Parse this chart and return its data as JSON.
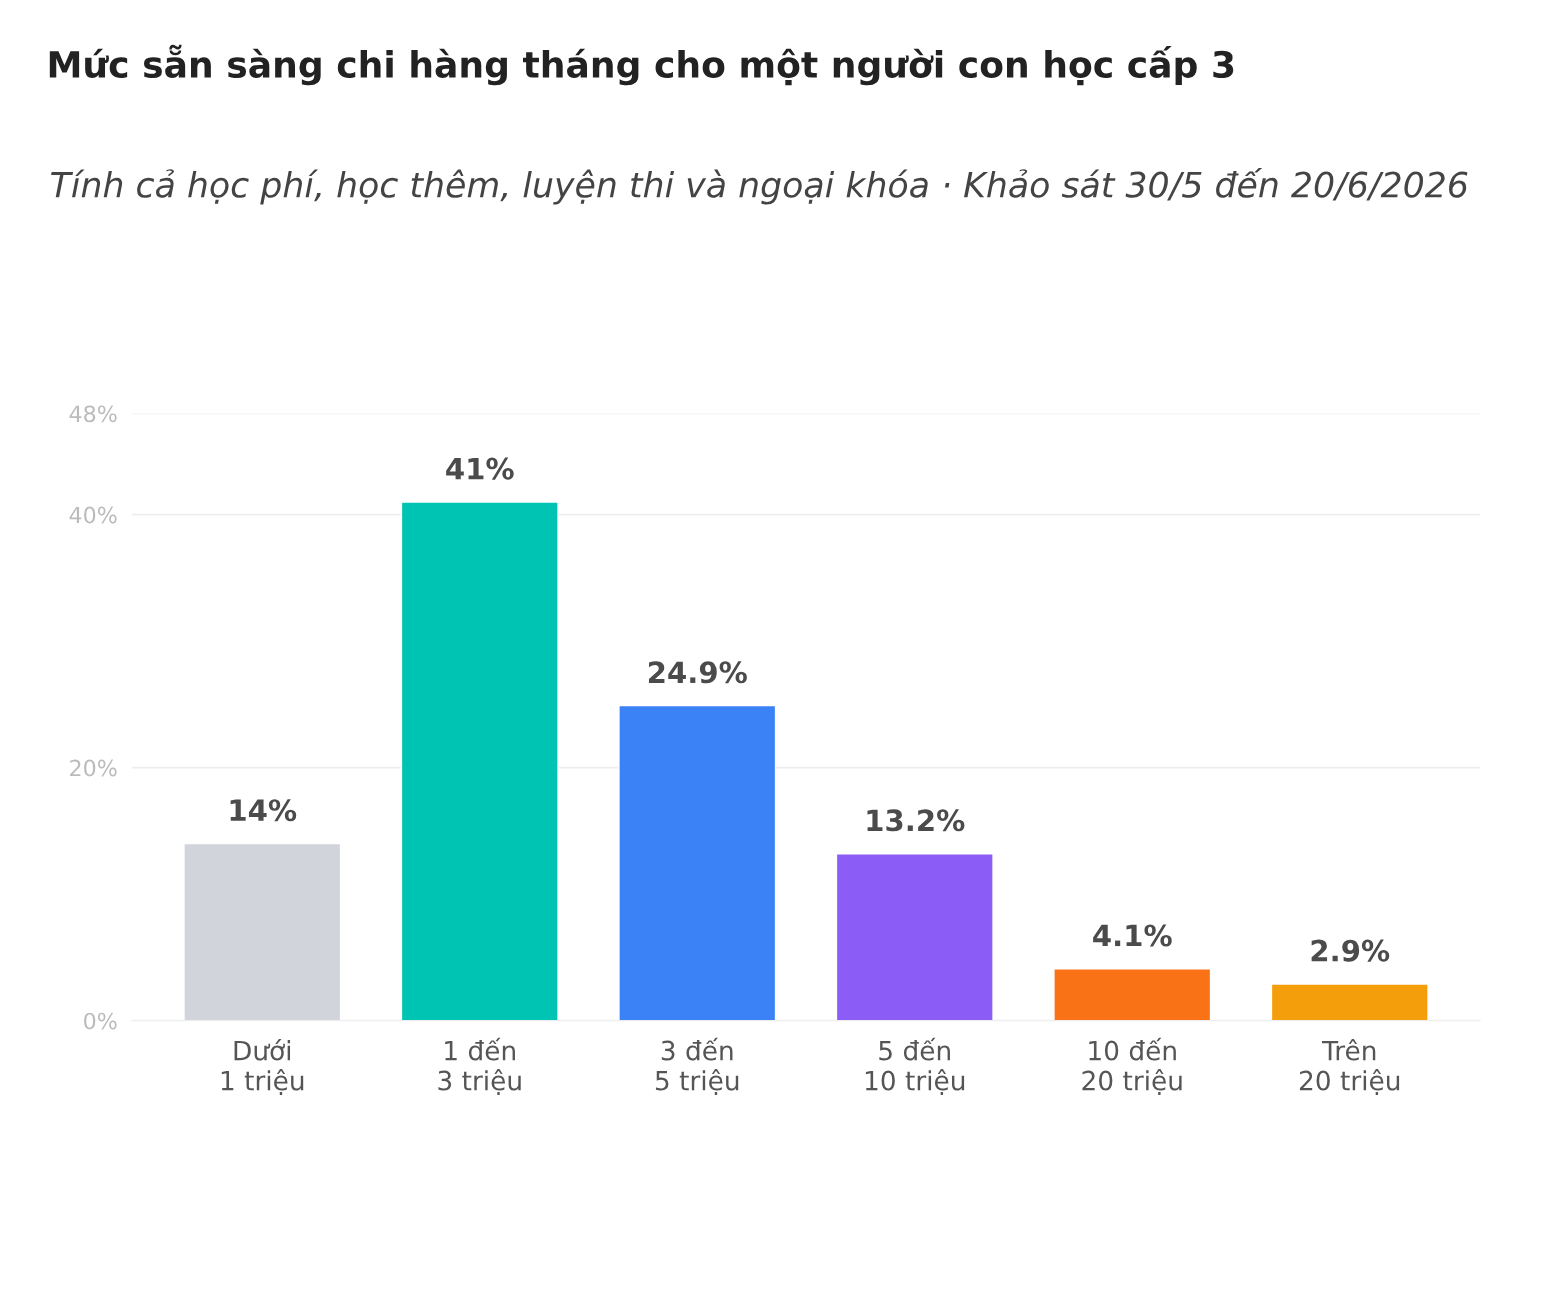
{
  "chart_data": {
    "type": "bar",
    "title": "Mức sẵn sàng chi hàng tháng cho một người con học cấp 3",
    "subtitle": "Tính cả học phí, học thêm, luyện thi và ngoại khóa · Khảo sát 30/5 đến 20/6/2026",
    "categories": [
      "Dưới\n1 triệu",
      "1 đến\n3 triệu",
      "3 đến\n5 triệu",
      "5 đến\n10 triệu",
      "10 đến\n20 triệu",
      "Trên\n20 triệu"
    ],
    "values": [
      14,
      41,
      24.9,
      13.2,
      4.1,
      2.9
    ],
    "value_labels": [
      "14%",
      "41%",
      "24.9%",
      "13.2%",
      "4.1%",
      "2.9%"
    ],
    "colors": [
      "#d1d5db",
      "#00c4b3",
      "#3b82f6",
      "#8b5cf6",
      "#f97316",
      "#f59e0b"
    ],
    "ylim": [
      0,
      48
    ],
    "yticks": [
      {
        "value": 0,
        "label": "0%"
      },
      {
        "value": 20,
        "label": "20%"
      },
      {
        "value": 40,
        "label": "40%"
      },
      {
        "value": 48,
        "label": "48%"
      }
    ],
    "grid": "y"
  }
}
